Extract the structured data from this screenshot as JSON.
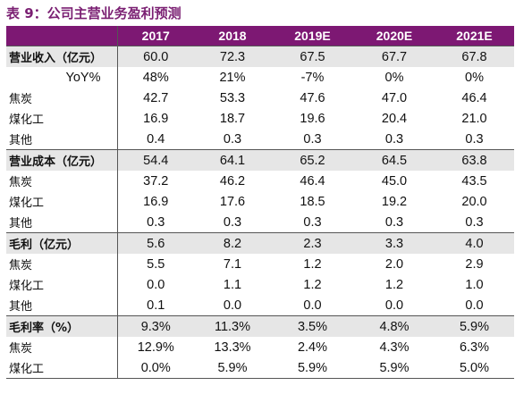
{
  "title": "表 9：公司主营业务盈利预测",
  "header": {
    "label": "",
    "years": [
      "2017",
      "2018",
      "2019E",
      "2020E",
      "2021E"
    ]
  },
  "rows": [
    {
      "label": "营业收入（亿元）",
      "values": [
        "60.0",
        "72.3",
        "67.5",
        "67.7",
        "67.8"
      ]
    },
    {
      "label": "YoY%",
      "values": [
        "48%",
        "21%",
        "-7%",
        "0%",
        "0%"
      ]
    },
    {
      "label": "焦炭",
      "values": [
        "42.7",
        "53.3",
        "47.6",
        "47.0",
        "46.4"
      ]
    },
    {
      "label": "煤化工",
      "values": [
        "16.9",
        "18.7",
        "19.6",
        "20.4",
        "21.0"
      ]
    },
    {
      "label": "其他",
      "values": [
        "0.4",
        "0.3",
        "0.3",
        "0.3",
        "0.3"
      ]
    },
    {
      "label": "营业成本（亿元）",
      "values": [
        "54.4",
        "64.1",
        "65.2",
        "64.5",
        "63.8"
      ]
    },
    {
      "label": "焦炭",
      "values": [
        "37.2",
        "46.2",
        "46.4",
        "45.0",
        "43.5"
      ]
    },
    {
      "label": "煤化工",
      "values": [
        "16.9",
        "17.6",
        "18.5",
        "19.2",
        "20.0"
      ]
    },
    {
      "label": "其他",
      "values": [
        "0.3",
        "0.3",
        "0.3",
        "0.3",
        "0.3"
      ]
    },
    {
      "label": "毛利（亿元）",
      "values": [
        "5.6",
        "8.2",
        "2.3",
        "3.3",
        "4.0"
      ]
    },
    {
      "label": "焦炭",
      "values": [
        "5.5",
        "7.1",
        "1.2",
        "2.0",
        "2.9"
      ]
    },
    {
      "label": "煤化工",
      "values": [
        "0.0",
        "1.1",
        "1.2",
        "1.2",
        "1.0"
      ]
    },
    {
      "label": "其他",
      "values": [
        "0.1",
        "0.0",
        "0.0",
        "0.0",
        "0.0"
      ]
    },
    {
      "label": "毛利率（%）",
      "values": [
        "9.3%",
        "11.3%",
        "3.5%",
        "4.8%",
        "5.9%"
      ]
    },
    {
      "label": "焦炭",
      "values": [
        "12.9%",
        "13.3%",
        "2.4%",
        "4.3%",
        "6.3%"
      ]
    },
    {
      "label": "煤化工",
      "values": [
        "0.0%",
        "5.9%",
        "5.9%",
        "5.9%",
        "5.0%"
      ]
    }
  ],
  "colors": {
    "header_bg": "#7d1873",
    "title_text": "#7a1f72",
    "section_bg": "#e6e6e6"
  }
}
